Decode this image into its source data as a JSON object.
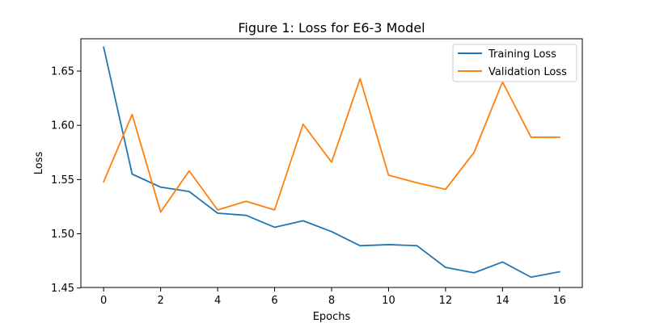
{
  "chart_data": {
    "type": "line",
    "title": "Figure 1: Loss for E6-3 Model",
    "xlabel": "Epochs",
    "ylabel": "Loss",
    "x": [
      0,
      1,
      2,
      3,
      4,
      5,
      6,
      7,
      8,
      9,
      10,
      11,
      12,
      13,
      14,
      15,
      16
    ],
    "xlim": [
      -0.8,
      16.8
    ],
    "ylim": [
      1.4505,
      1.6798
    ],
    "xticks": [
      0,
      2,
      4,
      6,
      8,
      10,
      12,
      14,
      16
    ],
    "yticks": [
      1.45,
      1.5,
      1.55,
      1.6,
      1.65
    ],
    "ytick_labels": [
      "1.45",
      "1.50",
      "1.55",
      "1.60",
      "1.65"
    ],
    "grid": false,
    "legend_position": "top-right",
    "series": [
      {
        "name": "Training Loss",
        "color": "#1f77b4",
        "values": [
          1.672,
          1.555,
          1.543,
          1.539,
          1.519,
          1.517,
          1.506,
          1.512,
          1.502,
          1.489,
          1.49,
          1.489,
          1.469,
          1.464,
          1.474,
          1.46,
          1.465
        ]
      },
      {
        "name": "Validation Loss",
        "color": "#ff7f0e",
        "values": [
          1.548,
          1.61,
          1.52,
          1.558,
          1.522,
          1.53,
          1.522,
          1.601,
          1.566,
          1.643,
          1.554,
          1.547,
          1.541,
          1.575,
          1.64,
          1.589,
          1.589
        ]
      }
    ]
  }
}
